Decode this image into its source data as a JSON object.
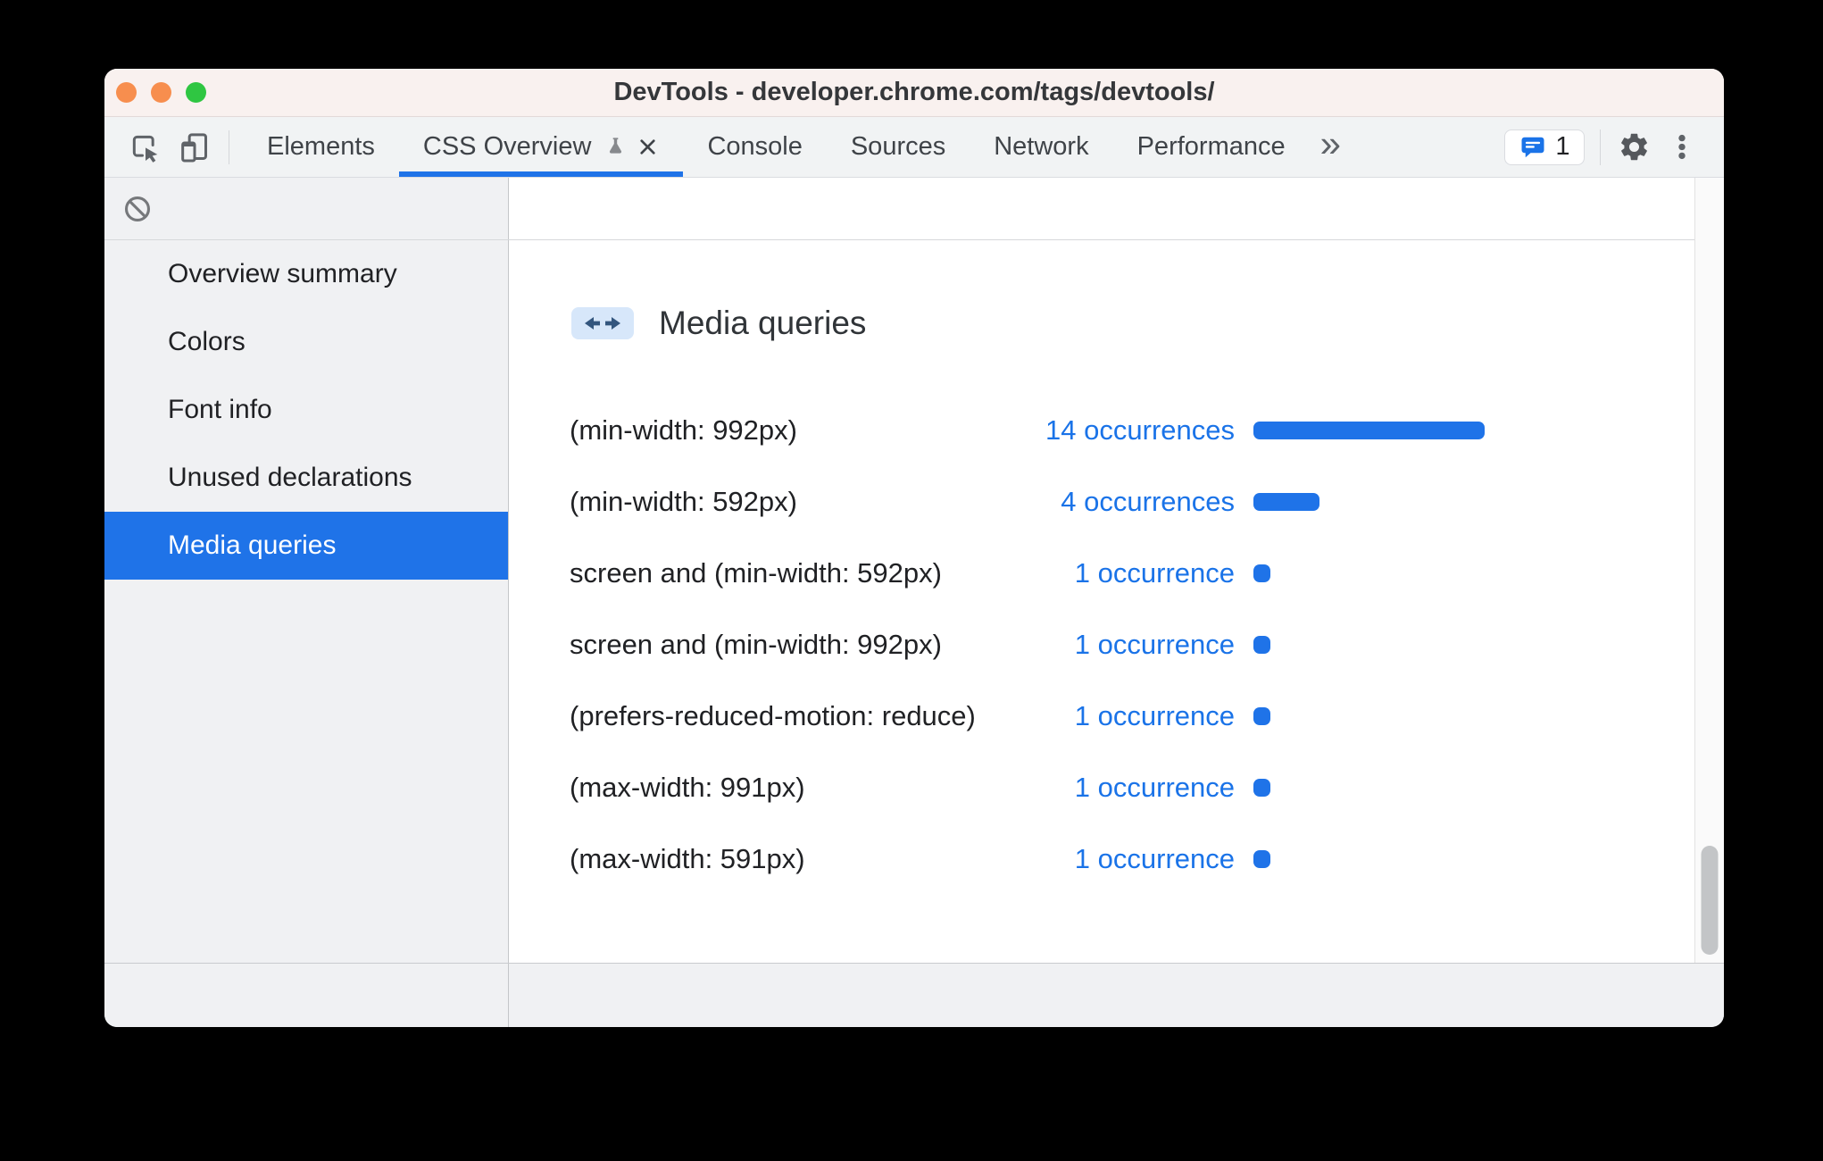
{
  "window": {
    "title": "DevTools - developer.chrome.com/tags/devtools/"
  },
  "tabbar": {
    "tabs": [
      {
        "label": "Elements",
        "active": false,
        "experiment": false,
        "closable": false
      },
      {
        "label": "CSS Overview",
        "active": true,
        "experiment": true,
        "closable": true
      },
      {
        "label": "Console",
        "active": false,
        "experiment": false,
        "closable": false
      },
      {
        "label": "Sources",
        "active": false,
        "experiment": false,
        "closable": false
      },
      {
        "label": "Network",
        "active": false,
        "experiment": false,
        "closable": false
      },
      {
        "label": "Performance",
        "active": false,
        "experiment": false,
        "closable": false
      }
    ],
    "overflow_label": "»",
    "issues_count": "1"
  },
  "sidebar": {
    "items": [
      {
        "label": "Overview summary",
        "selected": false
      },
      {
        "label": "Colors",
        "selected": false
      },
      {
        "label": "Font info",
        "selected": false
      },
      {
        "label": "Unused declarations",
        "selected": false
      },
      {
        "label": "Media queries",
        "selected": true
      }
    ]
  },
  "main": {
    "title": "Media queries",
    "rows": [
      {
        "query": "(min-width: 992px)",
        "count": 14,
        "count_label": "14 occurrences"
      },
      {
        "query": "(min-width: 592px)",
        "count": 4,
        "count_label": "4 occurrences"
      },
      {
        "query": "screen and (min-width: 592px)",
        "count": 1,
        "count_label": "1 occurrence"
      },
      {
        "query": "screen and (min-width: 992px)",
        "count": 1,
        "count_label": "1 occurrence"
      },
      {
        "query": "(prefers-reduced-motion: reduce)",
        "count": 1,
        "count_label": "1 occurrence"
      },
      {
        "query": "(max-width: 991px)",
        "count": 1,
        "count_label": "1 occurrence"
      },
      {
        "query": "(max-width: 591px)",
        "count": 1,
        "count_label": "1 occurrence"
      }
    ]
  },
  "colors": {
    "accent_blue": "#1F73E8",
    "link_blue": "#1A73E8",
    "bar_blue": "#1F73E8",
    "badge_bg": "#D7E7FA",
    "badge_arrow": "#33567E",
    "traffic": [
      "#F78E4E",
      "#F78E4E",
      "#2FC642"
    ]
  }
}
